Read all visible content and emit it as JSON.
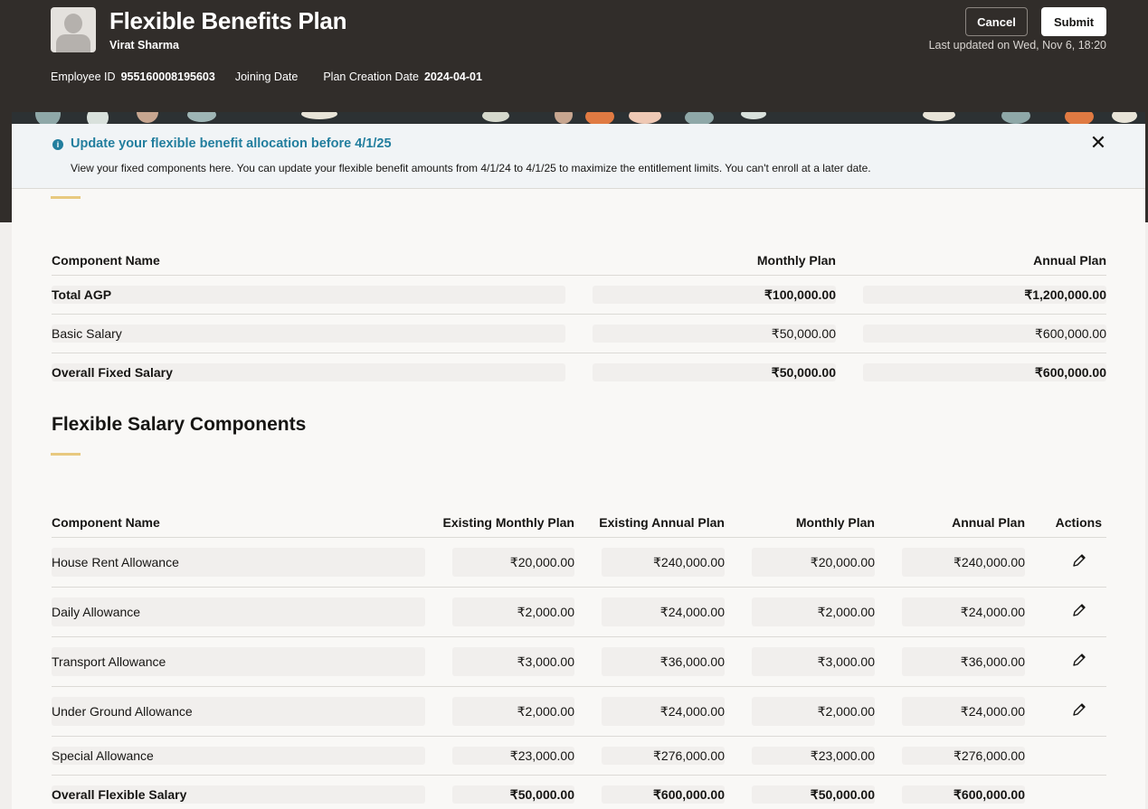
{
  "header": {
    "title": "Flexible Benefits Plan",
    "employee_name": "Virat Sharma",
    "employee_id_label": "Employee ID",
    "employee_id": "955160008195603",
    "joining_date_label": "Joining Date",
    "plan_creation_label": "Plan Creation Date",
    "plan_creation_date": "2024-04-01",
    "cancel_label": "Cancel",
    "submit_label": "Submit",
    "last_updated": "Last updated on Wed, Nov 6, 18:20"
  },
  "notice": {
    "title": "Update your flexible benefit allocation before 4/1/25",
    "text": "View your fixed components here. You can update your flexible benefit amounts from 4/1/24 to 4/1/25 to maximize the entitlement limits. You can't enroll at a later date."
  },
  "fixed": {
    "headers": [
      "Component Name",
      "Monthly Plan",
      "Annual Plan"
    ],
    "rows": [
      {
        "name": "Total AGP",
        "monthly": "₹100,000.00",
        "annual": "₹1,200,000.00"
      },
      {
        "name": "Basic Salary",
        "monthly": "₹50,000.00",
        "annual": "₹600,000.00"
      },
      {
        "name": "Overall Fixed Salary",
        "monthly": "₹50,000.00",
        "annual": "₹600,000.00"
      }
    ]
  },
  "flexible": {
    "title": "Flexible Salary Components",
    "headers": [
      "Component Name",
      "Existing Monthly Plan",
      "Existing Annual Plan",
      "Monthly Plan",
      "Annual Plan",
      "Actions"
    ],
    "rows": [
      {
        "name": "House Rent Allowance",
        "em": "₹20,000.00",
        "ea": "₹240,000.00",
        "m": "₹20,000.00",
        "a": "₹240,000.00"
      },
      {
        "name": "Daily Allowance",
        "em": "₹2,000.00",
        "ea": "₹24,000.00",
        "m": "₹2,000.00",
        "a": "₹24,000.00"
      },
      {
        "name": "Transport Allowance",
        "em": "₹3,000.00",
        "ea": "₹36,000.00",
        "m": "₹3,000.00",
        "a": "₹36,000.00"
      },
      {
        "name": "Under Ground Allowance",
        "em": "₹2,000.00",
        "ea": "₹24,000.00",
        "m": "₹2,000.00",
        "a": "₹24,000.00"
      },
      {
        "name": "Special Allowance",
        "em": "₹23,000.00",
        "ea": "₹276,000.00",
        "m": "₹23,000.00",
        "a": "₹276,000.00"
      },
      {
        "name": "Overall Flexible Salary",
        "em": "₹50,000.00",
        "ea": "₹600,000.00",
        "m": "₹50,000.00",
        "a": "₹600,000.00"
      }
    ]
  }
}
